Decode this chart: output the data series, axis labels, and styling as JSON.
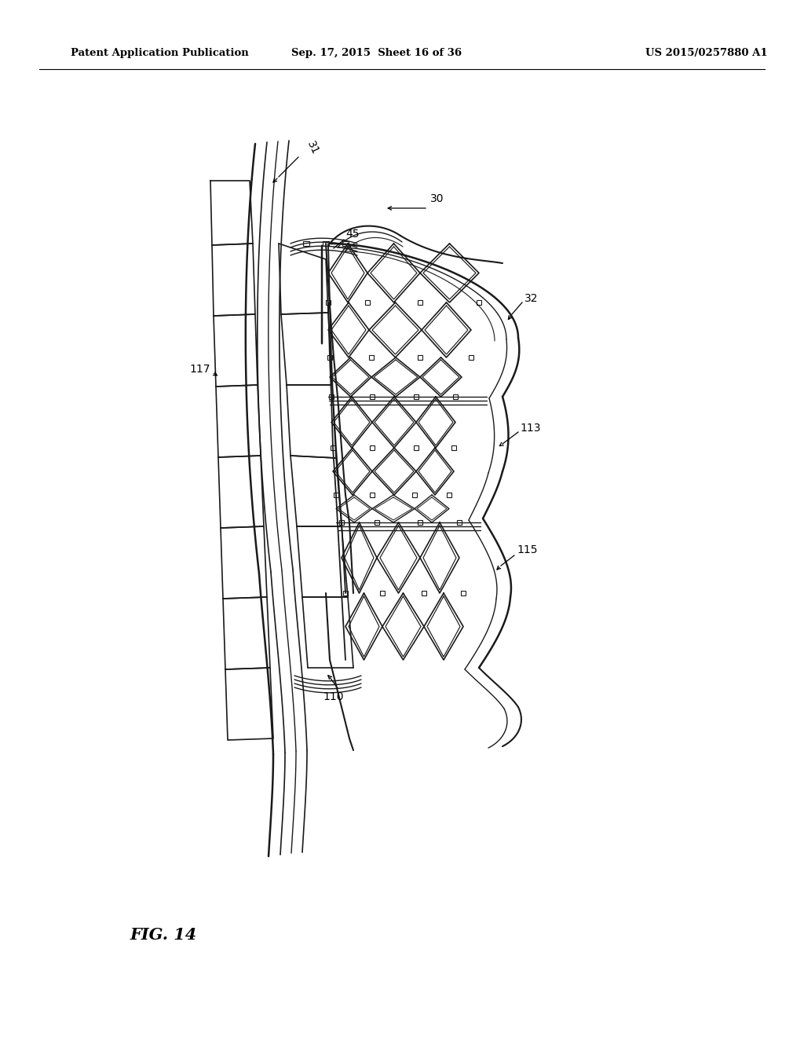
{
  "background_color": "#ffffff",
  "header_left": "Patent Application Publication",
  "header_center": "Sep. 17, 2015  Sheet 16 of 36",
  "header_right": "US 2015/0257880 A1",
  "fig_label": "FIG. 14",
  "label_fontsize": 10,
  "header_fontsize": 9.5,
  "fig_label_fontsize": 15,
  "line_color": "#1a1a1a",
  "line_width": 1.0
}
